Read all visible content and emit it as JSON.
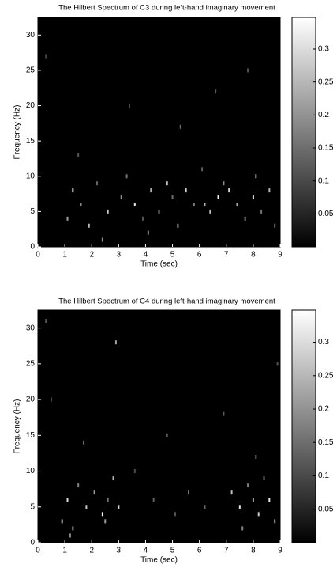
{
  "chart_data": [
    {
      "type": "scatter",
      "title": "The Hilbert Spectrum of C3 during left-hand imaginary movement",
      "x_label": "Time (sec)",
      "y_label": "Frequency (Hz)",
      "xlim": [
        0,
        9
      ],
      "xticks": [
        0,
        1,
        2,
        3,
        4,
        5,
        6,
        7,
        8,
        9
      ],
      "ylim": [
        0,
        32.5
      ],
      "yticks": [
        0,
        5,
        10,
        15,
        20,
        25,
        30
      ],
      "background": "#000000",
      "colormap": "gray",
      "clim": [
        0,
        0.348
      ],
      "cticks": [
        0.05,
        0.1,
        0.15,
        0.2,
        0.25,
        0.3
      ],
      "x": [
        1.1,
        1.3,
        1.6,
        1.9,
        2.2,
        2.6,
        3.1,
        3.3,
        3.6,
        3.9,
        4.2,
        4.5,
        4.8,
        5.0,
        5.2,
        5.5,
        5.8,
        6.1,
        6.4,
        6.7,
        6.9,
        7.1,
        7.4,
        7.7,
        8.0,
        8.3,
        8.6,
        8.8,
        1.5,
        3.4,
        5.3,
        6.6,
        7.8,
        2.4,
        4.1,
        6.2,
        0.3,
        8.1
      ],
      "y": [
        4,
        8,
        6,
        3,
        9,
        5,
        7,
        10,
        6,
        4,
        8,
        5,
        9,
        7,
        3,
        8,
        6,
        11,
        5,
        7,
        9,
        8,
        6,
        4,
        7,
        5,
        8,
        3,
        13,
        20,
        17,
        22,
        25,
        1,
        2,
        6,
        27,
        10
      ],
      "values": [
        0.22,
        0.3,
        0.18,
        0.25,
        0.14,
        0.28,
        0.2,
        0.16,
        0.32,
        0.12,
        0.24,
        0.19,
        0.27,
        0.15,
        0.21,
        0.3,
        0.17,
        0.13,
        0.26,
        0.33,
        0.2,
        0.29,
        0.23,
        0.18,
        0.31,
        0.16,
        0.25,
        0.14,
        0.12,
        0.1,
        0.15,
        0.13,
        0.11,
        0.2,
        0.18,
        0.24,
        0.1,
        0.22
      ]
    },
    {
      "type": "scatter",
      "title": "The Hilbert Spectrum of C4 during left-hand imaginary movement",
      "x_label": "Time (sec)",
      "y_label": "Frequency (Hz)",
      "xlim": [
        0,
        9
      ],
      "xticks": [
        0,
        1,
        2,
        3,
        4,
        5,
        6,
        7,
        8,
        9
      ],
      "ylim": [
        0,
        32.5
      ],
      "yticks": [
        0,
        5,
        10,
        15,
        20,
        25,
        30
      ],
      "background": "#000000",
      "colormap": "gray",
      "clim": [
        0,
        0.348
      ],
      "cticks": [
        0.05,
        0.1,
        0.15,
        0.2,
        0.25,
        0.3
      ],
      "x": [
        0.9,
        1.1,
        1.3,
        1.5,
        1.8,
        2.1,
        2.4,
        2.6,
        2.8,
        3.0,
        1.2,
        2.5,
        7.2,
        7.5,
        7.8,
        8.0,
        8.2,
        8.4,
        8.6,
        8.8,
        7.6,
        8.1,
        4.3,
        5.1,
        5.6,
        6.2,
        3.6,
        4.8,
        0.5,
        2.9,
        6.9,
        8.9,
        1.7,
        0.3
      ],
      "y": [
        3,
        6,
        2,
        8,
        5,
        7,
        4,
        6,
        9,
        5,
        1,
        3,
        7,
        5,
        8,
        6,
        4,
        9,
        6,
        3,
        2,
        12,
        6,
        4,
        7,
        5,
        10,
        15,
        20,
        28,
        18,
        25,
        14,
        31
      ],
      "values": [
        0.25,
        0.3,
        0.2,
        0.18,
        0.27,
        0.22,
        0.33,
        0.16,
        0.24,
        0.29,
        0.19,
        0.21,
        0.26,
        0.31,
        0.17,
        0.23,
        0.28,
        0.15,
        0.32,
        0.2,
        0.18,
        0.14,
        0.13,
        0.12,
        0.16,
        0.15,
        0.11,
        0.12,
        0.1,
        0.22,
        0.13,
        0.11,
        0.14,
        0.12
      ]
    }
  ]
}
